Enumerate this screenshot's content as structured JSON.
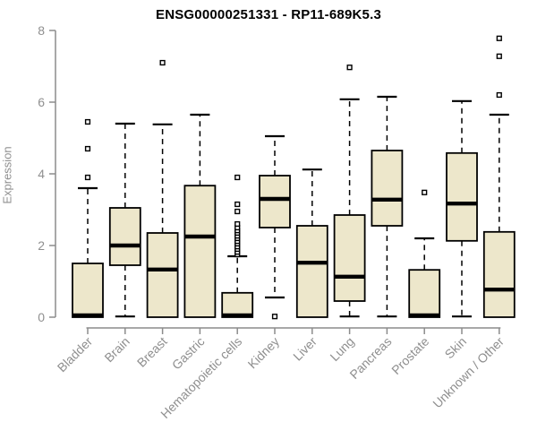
{
  "chart_data": {
    "type": "box",
    "title": "ENSG00000251331 - RP11-689K5.3",
    "ylabel": "Expression",
    "xlabel": "",
    "ylim": [
      0,
      8
    ],
    "yticks": [
      "0",
      "2",
      "4",
      "6",
      "8"
    ],
    "grid": false,
    "legend": "none",
    "colors": {
      "box_fill": "#ede7cb",
      "box_stroke": "#000000",
      "median": "#000000",
      "whisker": "#000000",
      "outlier_fill": "#ffffff",
      "axis": "#8c8c8c",
      "tick_text": "#8f8f8f",
      "title_text": "#000000"
    },
    "categories": [
      "Bladder",
      "Brain",
      "Breast",
      "Gastric",
      "Hematopoietic cells",
      "Kidney",
      "Liver",
      "Lung",
      "Pancreas",
      "Prostate",
      "Skin",
      "Unknown / Other"
    ],
    "series": [
      {
        "category": "Bladder",
        "whisker_low": 0,
        "q1": 0,
        "median": 0.05,
        "q3": 1.5,
        "whisker_high": 3.6,
        "outliers": [
          3.9,
          4.7,
          5.45
        ]
      },
      {
        "category": "Brain",
        "whisker_low": 0.02,
        "q1": 1.45,
        "median": 2.0,
        "q3": 3.05,
        "whisker_high": 5.4,
        "outliers": []
      },
      {
        "category": "Breast",
        "whisker_low": 0,
        "q1": 0,
        "median": 1.33,
        "q3": 2.35,
        "whisker_high": 5.38,
        "outliers": [
          7.1
        ]
      },
      {
        "category": "Gastric",
        "whisker_low": 0,
        "q1": 0,
        "median": 2.25,
        "q3": 3.67,
        "whisker_high": 5.65,
        "outliers": []
      },
      {
        "category": "Hematopoietic cells",
        "whisker_low": 0,
        "q1": 0,
        "median": 0.05,
        "q3": 0.68,
        "whisker_high": 1.7,
        "outliers": [
          1.75,
          1.82,
          1.9,
          1.97,
          2.05,
          2.12,
          2.2,
          2.27,
          2.35,
          2.42,
          2.5,
          2.6,
          2.95,
          3.15,
          3.9
        ]
      },
      {
        "category": "Kidney",
        "whisker_low": 0.55,
        "q1": 2.5,
        "median": 3.3,
        "q3": 3.95,
        "whisker_high": 5.05,
        "outliers": [
          0.02
        ]
      },
      {
        "category": "Liver",
        "whisker_low": 0,
        "q1": 0,
        "median": 1.52,
        "q3": 2.55,
        "whisker_high": 4.12,
        "outliers": []
      },
      {
        "category": "Lung",
        "whisker_low": 0.02,
        "q1": 0.45,
        "median": 1.13,
        "q3": 2.85,
        "whisker_high": 6.08,
        "outliers": [
          6.97
        ]
      },
      {
        "category": "Pancreas",
        "whisker_low": 0.02,
        "q1": 2.55,
        "median": 3.28,
        "q3": 4.65,
        "whisker_high": 6.15,
        "outliers": []
      },
      {
        "category": "Prostate",
        "whisker_low": 0,
        "q1": 0,
        "median": 0.05,
        "q3": 1.32,
        "whisker_high": 2.2,
        "outliers": [
          3.48
        ]
      },
      {
        "category": "Skin",
        "whisker_low": 0.02,
        "q1": 2.13,
        "median": 3.17,
        "q3": 4.58,
        "whisker_high": 6.03,
        "outliers": []
      },
      {
        "category": "Unknown / Other",
        "whisker_low": 0,
        "q1": 0,
        "median": 0.77,
        "q3": 2.38,
        "whisker_high": 5.65,
        "outliers": [
          6.2,
          7.28,
          7.78
        ]
      }
    ]
  }
}
